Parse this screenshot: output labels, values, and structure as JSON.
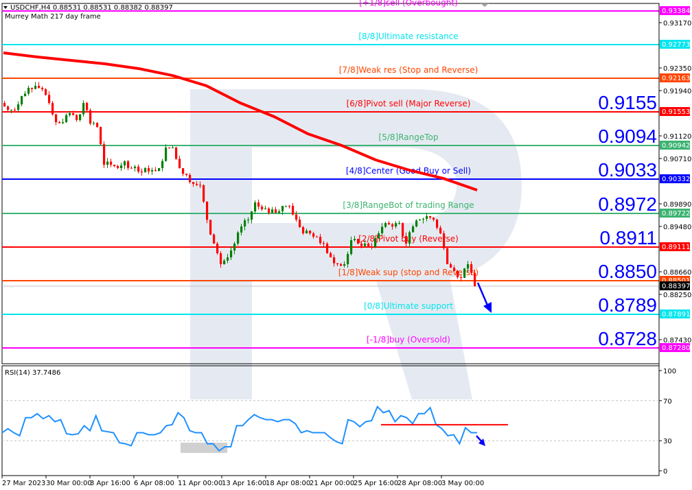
{
  "header": {
    "symbol_line": "USDCHF,H4  0.88531 0.88531 0.88382 0.88397",
    "indicator_name": "Murrey Math 217 day frame"
  },
  "rsi": {
    "label": "RSI(14) 37.7486",
    "axis_ticks": [
      "100",
      "70",
      "30",
      "0"
    ],
    "line_color": "#1e90ff",
    "values": [
      38,
      42,
      38,
      35,
      53,
      53,
      57,
      52,
      55,
      49,
      51,
      37,
      36,
      37,
      45,
      40,
      55,
      40,
      39,
      38,
      28,
      27,
      25,
      38,
      38,
      36,
      36,
      38,
      45,
      46,
      58,
      53,
      40,
      38,
      38,
      27,
      27,
      20,
      24,
      24,
      45,
      45,
      51,
      56,
      53,
      51,
      51,
      49,
      51,
      51,
      47,
      38,
      40,
      38,
      38,
      38,
      33,
      29,
      27,
      51,
      49,
      44,
      49,
      50,
      64,
      58,
      60,
      49,
      55,
      53,
      47,
      57,
      57,
      63,
      46,
      42,
      35,
      36,
      27,
      43,
      38,
      38
    ],
    "resistance_level": 46,
    "resistance_color": "#ff0000"
  },
  "chart_data": {
    "type": "candlestick",
    "title": "USDCHF,H4",
    "price_axis_ticks": [
      "0.93170",
      "0.92350",
      "0.91940",
      "0.91120",
      "0.90710",
      "0.89890",
      "0.89480",
      "0.88660",
      "0.88250",
      "0.87430"
    ],
    "time_axis_ticks": [
      "27 Mar 2023",
      "30 Mar 00:00",
      "3 Apr 16:00",
      "6 Apr 08:00",
      "11 Apr 00:00",
      "13 Apr 16:00",
      "18 Apr 08:00",
      "21 Apr 00:00",
      "25 Apr 16:00",
      "28 Apr 08:00",
      "3 May 00:00"
    ],
    "ylim": [
      0.871,
      0.9357
    ],
    "close_path": [
      0.91716,
      0.91592,
      0.91592,
      0.91841,
      0.9199,
      0.92027,
      0.91965,
      0.91716,
      0.91369,
      0.91369,
      0.9153,
      0.91406,
      0.91716,
      0.91344,
      0.91282,
      0.90598,
      0.90598,
      0.90536,
      0.9066,
      0.90536,
      0.90474,
      0.90536,
      0.90499,
      0.90536,
      0.90909,
      0.90909,
      0.90536,
      0.90412,
      0.9025,
      0.90226,
      0.896,
      0.8917,
      0.88797,
      0.88921,
      0.8917,
      0.8948,
      0.89604,
      0.89915,
      0.89791,
      0.89729,
      0.89729,
      0.89853,
      0.89853,
      0.89604,
      0.89356,
      0.89356,
      0.89294,
      0.8917,
      0.88921,
      0.88797,
      0.88797,
      0.89232,
      0.8917,
      0.8917,
      0.89107,
      0.89356,
      0.89542,
      0.8948,
      0.89542,
      0.8917,
      0.8948,
      0.89604,
      0.89666,
      0.89604,
      0.89356,
      0.88797,
      0.88673,
      0.8855,
      0.88797,
      0.88397
    ],
    "bull_color": "#008000",
    "bear_color": "#ff0000",
    "moving_average": {
      "color": "#ff0000",
      "values": [
        0.92623,
        0.92549,
        0.92487,
        0.92425,
        0.92338,
        0.92213,
        0.92027,
        0.91716,
        0.91468,
        0.91157,
        0.90946,
        0.90685,
        0.90499,
        0.9035,
        0.90139
      ]
    },
    "current_price": {
      "value": 0.88397,
      "label": "0.88397"
    },
    "murrey_levels": [
      {
        "price": 0.93384,
        "tag": "0.93384",
        "label": "[+1/8]sell (Overbought)",
        "color": "#ff00ff",
        "big": ""
      },
      {
        "price": 0.92773,
        "tag": "0.92773",
        "label": "[8/8]Ultimate resistance",
        "color": "#00e5ee",
        "big": ""
      },
      {
        "price": 0.92163,
        "tag": "0.92163",
        "label": "[7/8]Weak res (Stop and Reverse)",
        "color": "#ff4500",
        "big": ""
      },
      {
        "price": 0.91553,
        "tag": "0.91553",
        "label": "[6/8]Pivot sell (Major Reverse)",
        "color": "#ff0000",
        "big": "0.9155"
      },
      {
        "price": 0.90942,
        "tag": "0.90942",
        "label": "[5/8]RangeTop",
        "color": "#3cb371",
        "big": "0.9094"
      },
      {
        "price": 0.90332,
        "tag": "0.90332",
        "label": "[4/8]Center (Good Buy or Sell)",
        "color": "#0000ff",
        "big": "0.9033"
      },
      {
        "price": 0.89722,
        "tag": "0.89722",
        "label": "[3/8]RangeBot of trading Range",
        "color": "#3cb371",
        "big": "0.8972"
      },
      {
        "price": 0.89111,
        "tag": "0.89111",
        "label": "[2/8]Pivot buy (Reverse)",
        "color": "#ff0000",
        "big": "0.8911"
      },
      {
        "price": 0.88501,
        "tag": "0.88501",
        "label": "[1/8]Weak sup (stop and Reverse)",
        "color": "#ff4500",
        "big": "0.8850"
      },
      {
        "price": 0.87891,
        "tag": "0.87891",
        "label": "[0/8]Ultimate support",
        "color": "#00e5ee",
        "big": "0.8789"
      },
      {
        "price": 0.8728,
        "tag": "0.87280",
        "label": "[-1/8]buy (Oversold)",
        "color": "#ff00ff",
        "big": "0.8728"
      }
    ],
    "forecast_arrow_color": "#0000ff",
    "watermark_color": "#e5eaf2"
  }
}
